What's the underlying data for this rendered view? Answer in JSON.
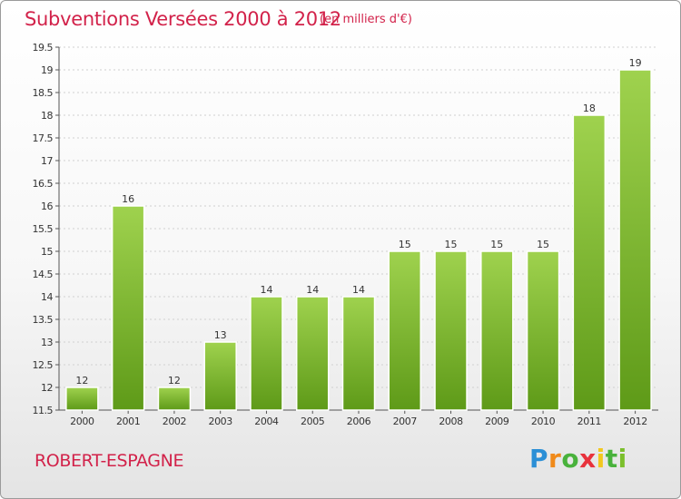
{
  "header": {
    "title": "Subventions Versées 2000 à 2012",
    "unit_note": "(en milliers d'€)"
  },
  "footer": {
    "commune": "ROBERT-ESPAGNE",
    "logo_text": "Proxiti"
  },
  "colors": {
    "accent": "#d2224a",
    "bar_light": "#9fd24e",
    "bar_dark": "#5e9a18",
    "grid": "#d0d0d0"
  },
  "chart_data": {
    "type": "bar",
    "categories": [
      "2000",
      "2001",
      "2002",
      "2003",
      "2004",
      "2005",
      "2006",
      "2007",
      "2008",
      "2009",
      "2010",
      "2011",
      "2012"
    ],
    "values": [
      12,
      16,
      12,
      13,
      14,
      14,
      14,
      15,
      15,
      15,
      15,
      18,
      19
    ],
    "title": "Subventions Versées 2000 à 2012",
    "subtitle": "(en milliers d'€)",
    "xlabel": "",
    "ylabel": "",
    "ylim": [
      11.5,
      19.5
    ],
    "yticks": [
      11.5,
      12,
      12.5,
      13,
      13.5,
      14,
      14.5,
      15,
      15.5,
      16,
      16.5,
      17,
      17.5,
      18,
      18.5,
      19,
      19.5
    ],
    "grid": true,
    "data_labels": true
  }
}
